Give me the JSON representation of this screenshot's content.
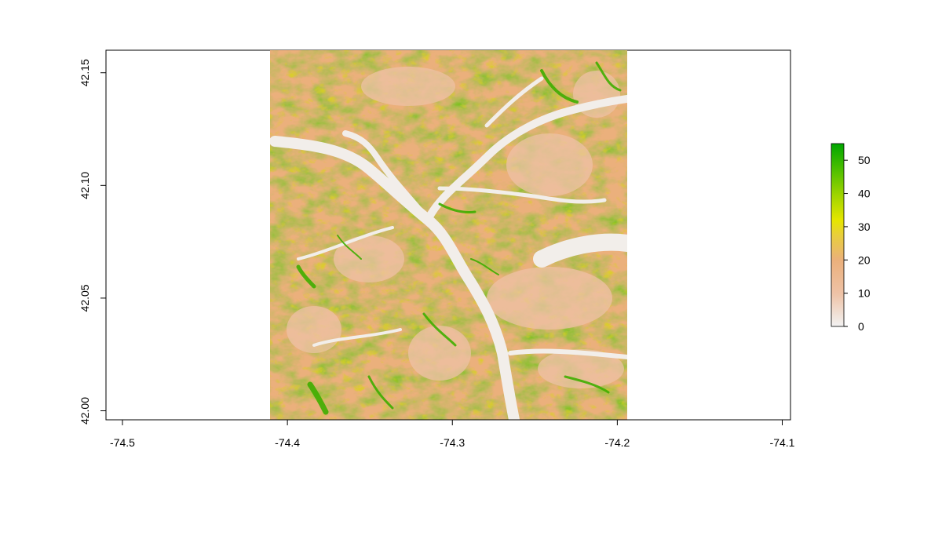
{
  "chart_data": {
    "type": "heatmap",
    "title": "",
    "xlabel": "",
    "ylabel": "",
    "xlim": [
      -74.51,
      -74.095
    ],
    "ylim": [
      41.996,
      42.16
    ],
    "x_ticks": [
      -74.5,
      -74.4,
      -74.3,
      -74.2,
      -74.1
    ],
    "x_tick_labels": [
      "-74.5",
      "-74.4",
      "-74.3",
      "-74.2",
      "-74.1"
    ],
    "y_ticks": [
      42.0,
      42.05,
      42.1,
      42.15
    ],
    "y_tick_labels": [
      "42.00",
      "42.05",
      "42.10",
      "42.15"
    ],
    "raster_extent": {
      "xmin": -74.413,
      "xmax": -74.198,
      "ymin": 41.996,
      "ymax": 42.16
    },
    "grid": false,
    "legend": {
      "placement": "right",
      "range": [
        0,
        55
      ],
      "ticks": [
        0,
        10,
        20,
        30,
        40,
        50
      ],
      "tick_labels": [
        "0",
        "10",
        "20",
        "30",
        "40",
        "50"
      ],
      "colors": [
        "#f2f2f2",
        "#eec2a6",
        "#ebb07c",
        "#e8cf3b",
        "#e6e600",
        "#9ed400",
        "#4cbf00",
        "#00a600"
      ]
    },
    "features": {
      "valley_floor_color": "#f2f2f2",
      "low_value_color": "#eec2a6",
      "mid_value_color": "#ebb07c",
      "high_value_color": "#4cbf00"
    }
  }
}
